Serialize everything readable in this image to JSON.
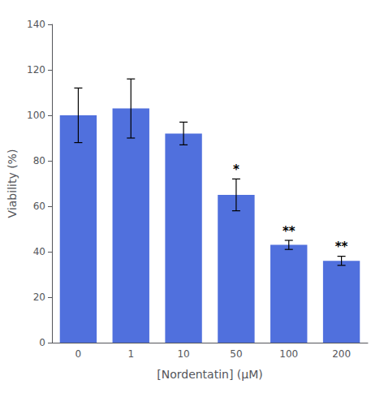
{
  "chart_data": {
    "type": "bar",
    "categories": [
      "0",
      "1",
      "10",
      "50",
      "100",
      "200"
    ],
    "values": [
      100,
      103,
      92,
      65,
      43,
      36
    ],
    "errors": [
      12,
      13,
      5,
      7,
      2,
      2
    ],
    "annotations": [
      {
        "category": "50",
        "text": "*"
      },
      {
        "category": "100",
        "text": "**"
      },
      {
        "category": "200",
        "text": "**"
      }
    ],
    "xlabel": "[Nordentatin] (μM)",
    "ylabel": "Viability (%)",
    "ylim": [
      0,
      140
    ],
    "yticks": [
      0,
      20,
      40,
      60,
      80,
      100,
      120,
      140
    ],
    "grid": false
  }
}
